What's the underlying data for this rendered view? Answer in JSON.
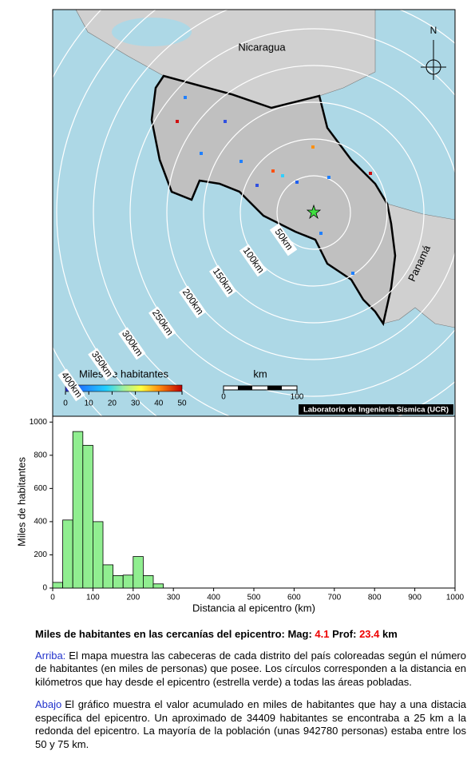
{
  "map": {
    "countries": [
      "Nicaragua",
      "Panamá"
    ],
    "north": "N",
    "rings": [
      {
        "value": 50,
        "label": "50km"
      },
      {
        "value": 100,
        "label": "100km"
      },
      {
        "value": 150,
        "label": "150km"
      },
      {
        "value": 200,
        "label": "200km"
      },
      {
        "value": 250,
        "label": "250km"
      },
      {
        "value": 300,
        "label": "300km"
      },
      {
        "value": 350,
        "label": "350km"
      },
      {
        "value": 400,
        "label": "400km"
      }
    ],
    "colorbar": {
      "title": "Miles de habitantes",
      "range": [
        0,
        50
      ],
      "ticks": [
        0,
        10,
        20,
        30,
        40,
        50
      ]
    },
    "scalebar": {
      "title": "km",
      "ticks": [
        0,
        100
      ]
    },
    "credit": "Laboratorio de Ingeniería Sísmica (UCR)"
  },
  "chart_data": {
    "type": "histogram",
    "xlabel": "Distancia al epicentro (km)",
    "ylabel": "Miles de habitantes",
    "bins": [
      0,
      25,
      50,
      75,
      100,
      125,
      150,
      175,
      200,
      225,
      250,
      275
    ],
    "values": [
      34,
      410,
      943,
      860,
      400,
      140,
      75,
      78,
      190,
      75,
      25
    ],
    "color": "#90ee90",
    "xlim": [
      0,
      1000
    ],
    "xticks": [
      0,
      100,
      200,
      300,
      400,
      500,
      600,
      700,
      800,
      900,
      1000
    ],
    "ylim": [
      0,
      1035
    ],
    "yticks": [
      0,
      200,
      400,
      600,
      800,
      1000
    ]
  },
  "caption": {
    "title": [
      "Miles de habitantes en las cercanías del epicentro: Mag:",
      "4.1",
      "Prof:",
      "23.4",
      "km"
    ],
    "paragraphs": [
      [
        "Arriba:",
        "El mapa muestra las cabeceras de cada distrito del país coloreadas según el número de habitantes (en miles de personas) que posee.  Los círculos corresponden a la distancia en kilómetros que hay desde el epicentro (estrella verde) a todas las áreas pobladas."
      ],
      [
        "Abajo",
        "El gráfico muestra el valor acumulado en miles de habitantes que hay a una distacia específica del epicentro.  Un aproximado de 34409 habitantes se encontraba a 25 km a la redonda del epicentro.  La mayoría de la población (unas 942780 personas) estaba entre los 50 y 75 km."
      ]
    ]
  }
}
